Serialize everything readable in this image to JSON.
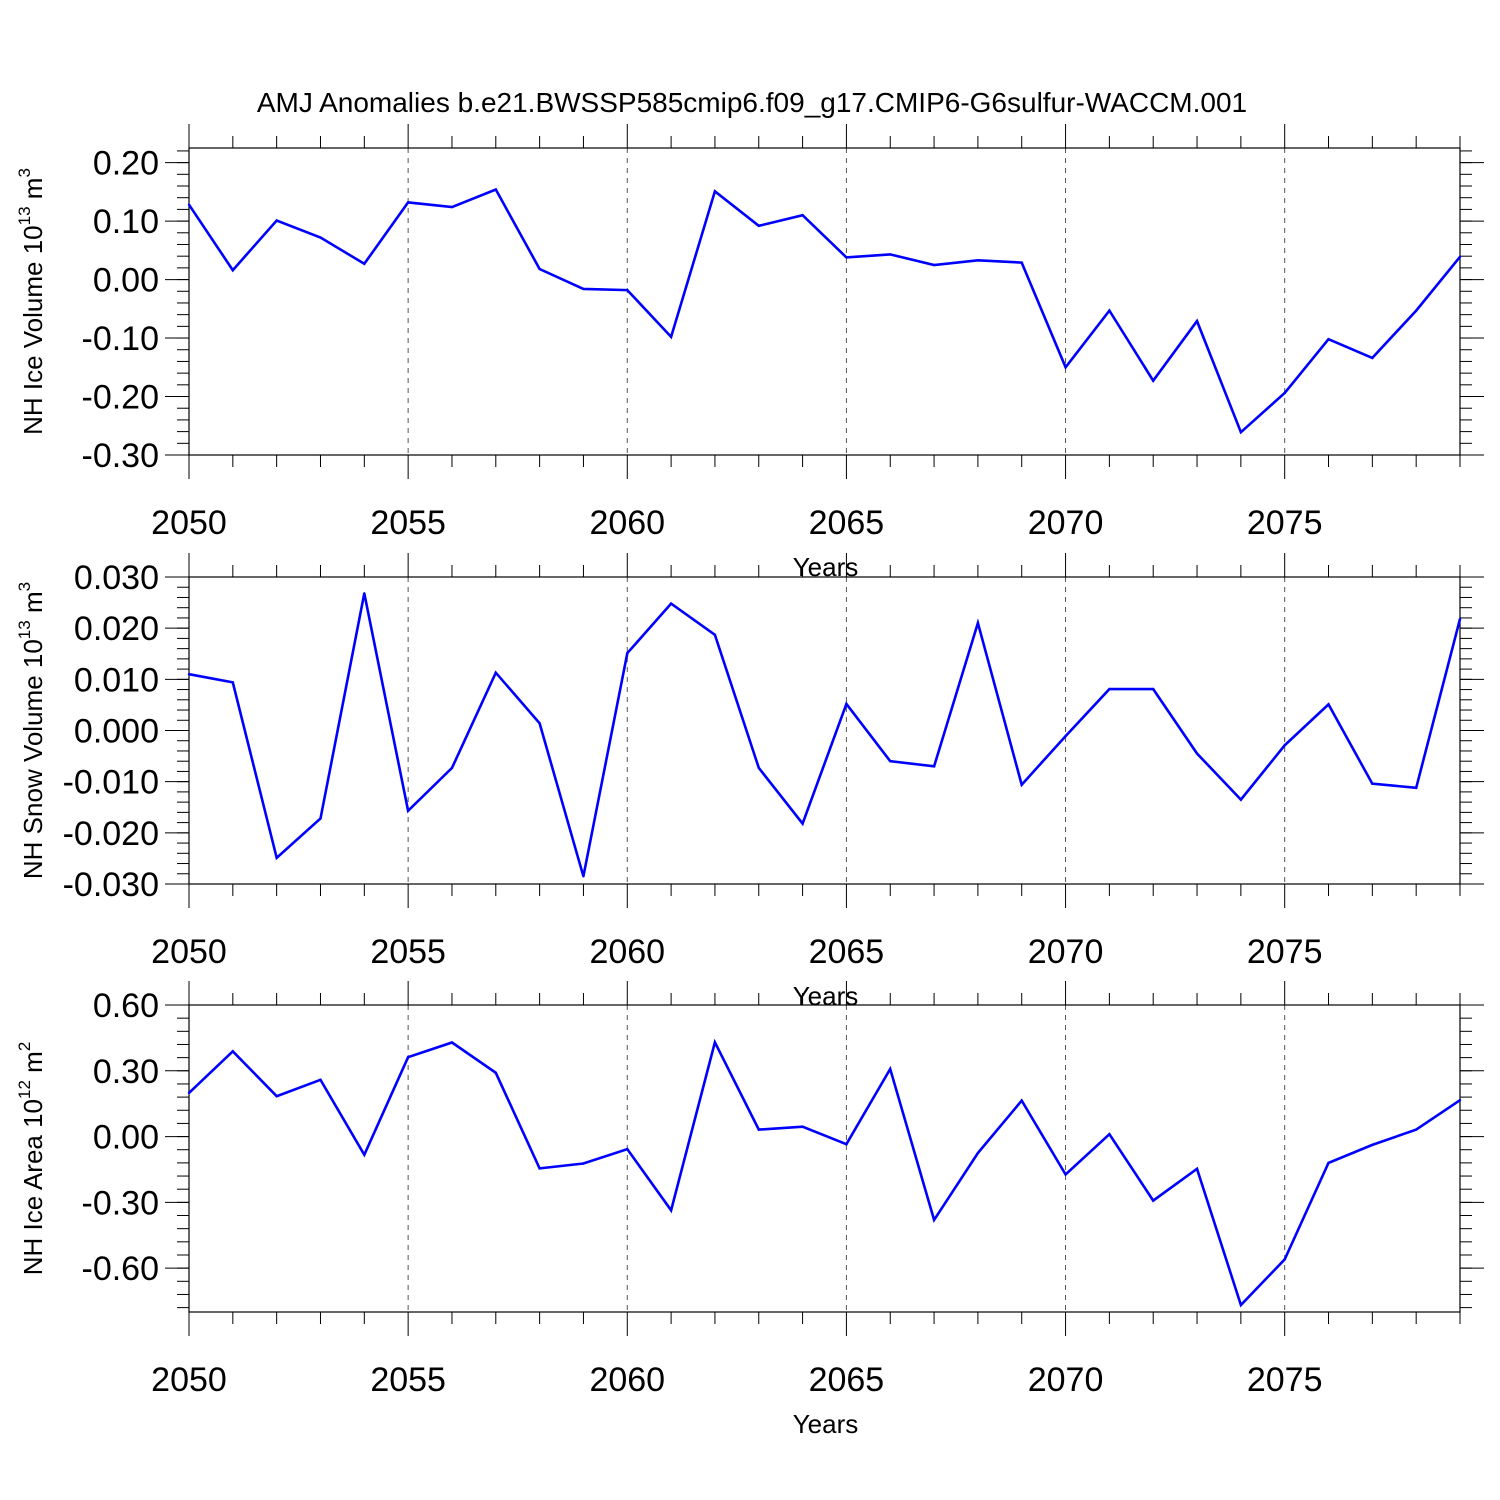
{
  "title": "AMJ Anomalies b.e21.BWSSP585cmip6.f09_g17.CMIP6-G6sulfur-WACCM.001",
  "colors": {
    "series": "#0000ff",
    "axis": "#000000",
    "grid": "#555555"
  },
  "chart_data": [
    {
      "type": "line",
      "id": "ice-volume",
      "ylabel": "NH Ice Volume",
      "ylabel_unit_base": "10",
      "ylabel_unit_exp": "13",
      "ylabel_unit_dim": "m",
      "ylabel_unit_dim_exp": "3",
      "xlabel": "Years",
      "xlim": [
        2050,
        2079
      ],
      "ylim": [
        -0.3,
        0.225
      ],
      "yticks": [
        -0.3,
        -0.2,
        -0.1,
        0.0,
        0.1,
        0.2
      ],
      "ytick_labels": [
        "-0.30",
        "-0.20",
        "-0.10",
        "0.00",
        "0.10",
        "0.20"
      ],
      "xticks": [
        2050,
        2055,
        2060,
        2065,
        2070,
        2075
      ],
      "xtick_labels": [
        "2050",
        "2055",
        "2060",
        "2065",
        "2070",
        "2075"
      ],
      "x": [
        2050,
        2051,
        2052,
        2053,
        2054,
        2055,
        2056,
        2057,
        2058,
        2059,
        2060,
        2061,
        2062,
        2063,
        2064,
        2065,
        2066,
        2067,
        2068,
        2069,
        2070,
        2071,
        2072,
        2073,
        2074,
        2075,
        2076,
        2077,
        2078,
        2079
      ],
      "values": [
        0.128,
        0.016,
        0.101,
        0.072,
        0.027,
        0.132,
        0.124,
        0.154,
        0.018,
        -0.016,
        -0.018,
        -0.098,
        0.151,
        0.092,
        0.11,
        0.038,
        0.043,
        0.025,
        0.033,
        0.029,
        -0.15,
        -0.053,
        -0.173,
        -0.071,
        -0.261,
        -0.194,
        -0.102,
        -0.134,
        -0.053,
        0.039
      ]
    },
    {
      "type": "line",
      "id": "snow-volume",
      "ylabel": "NH Snow Volume",
      "ylabel_unit_base": "10",
      "ylabel_unit_exp": "13",
      "ylabel_unit_dim": "m",
      "ylabel_unit_dim_exp": "3",
      "xlabel": "Years",
      "xlim": [
        2050,
        2079
      ],
      "ylim": [
        -0.03,
        0.03
      ],
      "yticks": [
        -0.03,
        -0.02,
        -0.01,
        0.0,
        0.01,
        0.02,
        0.03
      ],
      "ytick_labels": [
        "-0.030",
        "-0.020",
        "-0.010",
        "0.000",
        "0.010",
        "0.020",
        "0.030"
      ],
      "xticks": [
        2050,
        2055,
        2060,
        2065,
        2070,
        2075
      ],
      "xtick_labels": [
        "2050",
        "2055",
        "2060",
        "2065",
        "2070",
        "2075"
      ],
      "x": [
        2050,
        2051,
        2052,
        2053,
        2054,
        2055,
        2056,
        2057,
        2058,
        2059,
        2060,
        2061,
        2062,
        2063,
        2064,
        2065,
        2066,
        2067,
        2068,
        2069,
        2070,
        2071,
        2072,
        2073,
        2074,
        2075,
        2076,
        2077,
        2078,
        2079
      ],
      "values": [
        0.011,
        0.0094,
        -0.0249,
        -0.0172,
        0.0268,
        -0.0157,
        -0.0073,
        0.0113,
        0.0014,
        -0.0285,
        0.0151,
        0.0248,
        0.0187,
        -0.0073,
        -0.0182,
        0.0052,
        -0.006,
        -0.007,
        0.021,
        -0.0106,
        -0.0011,
        0.0081,
        0.0081,
        -0.0045,
        -0.0135,
        -0.0029,
        0.0051,
        -0.0104,
        -0.0112,
        0.0218
      ]
    },
    {
      "type": "line",
      "id": "ice-area",
      "ylabel": "NH Ice Area",
      "ylabel_unit_base": "10",
      "ylabel_unit_exp": "12",
      "ylabel_unit_dim": "m",
      "ylabel_unit_dim_exp": "2",
      "xlabel": "Years",
      "xlim": [
        2050,
        2079
      ],
      "ylim": [
        -0.8,
        0.6
      ],
      "yticks": [
        -0.6,
        -0.3,
        0.0,
        0.3,
        0.6
      ],
      "ytick_labels": [
        "-0.60",
        "-0.30",
        "0.00",
        "0.30",
        "0.60"
      ],
      "xticks": [
        2050,
        2055,
        2060,
        2065,
        2070,
        2075
      ],
      "xtick_labels": [
        "2050",
        "2055",
        "2060",
        "2065",
        "2070",
        "2075"
      ],
      "x": [
        2050,
        2051,
        2052,
        2053,
        2054,
        2055,
        2056,
        2057,
        2058,
        2059,
        2060,
        2061,
        2062,
        2063,
        2064,
        2065,
        2066,
        2067,
        2068,
        2069,
        2070,
        2071,
        2072,
        2073,
        2074,
        2075,
        2076,
        2077,
        2078,
        2079
      ],
      "values": [
        0.199,
        0.389,
        0.184,
        0.259,
        -0.083,
        0.362,
        0.429,
        0.291,
        -0.145,
        -0.123,
        -0.057,
        -0.336,
        0.43,
        0.032,
        0.045,
        -0.035,
        0.308,
        -0.38,
        -0.075,
        0.164,
        -0.173,
        0.011,
        -0.292,
        -0.147,
        -0.768,
        -0.56,
        -0.12,
        -0.038,
        0.032,
        0.166
      ]
    }
  ]
}
